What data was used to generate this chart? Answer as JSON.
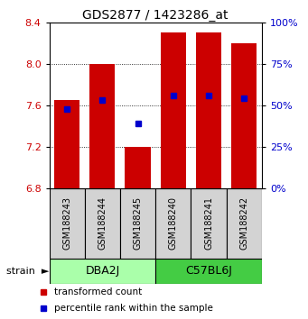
{
  "title": "GDS2877 / 1423286_at",
  "samples": [
    "GSM188243",
    "GSM188244",
    "GSM188245",
    "GSM188240",
    "GSM188241",
    "GSM188242"
  ],
  "group_info": [
    {
      "name": "DBA2J",
      "start": 0,
      "end": 3,
      "color": "#AAFFAA"
    },
    {
      "name": "C57BL6J",
      "start": 3,
      "end": 6,
      "color": "#44CC44"
    }
  ],
  "bar_bottom": 6.8,
  "bar_tops": [
    7.65,
    8.0,
    7.2,
    8.3,
    8.3,
    8.2
  ],
  "blue_pct": [
    48,
    53,
    39,
    56,
    56,
    54
  ],
  "ylim": [
    6.8,
    8.4
  ],
  "yticks_left": [
    6.8,
    7.2,
    7.6,
    8.0,
    8.4
  ],
  "yticks_right": [
    0,
    25,
    50,
    75,
    100
  ],
  "bar_color": "#CC0000",
  "blue_color": "#0000CC",
  "bar_width": 0.72,
  "title_fontsize": 10,
  "tick_fontsize": 8,
  "sample_fontsize": 7,
  "group_fontsize": 9,
  "legend_fontsize": 7.5
}
